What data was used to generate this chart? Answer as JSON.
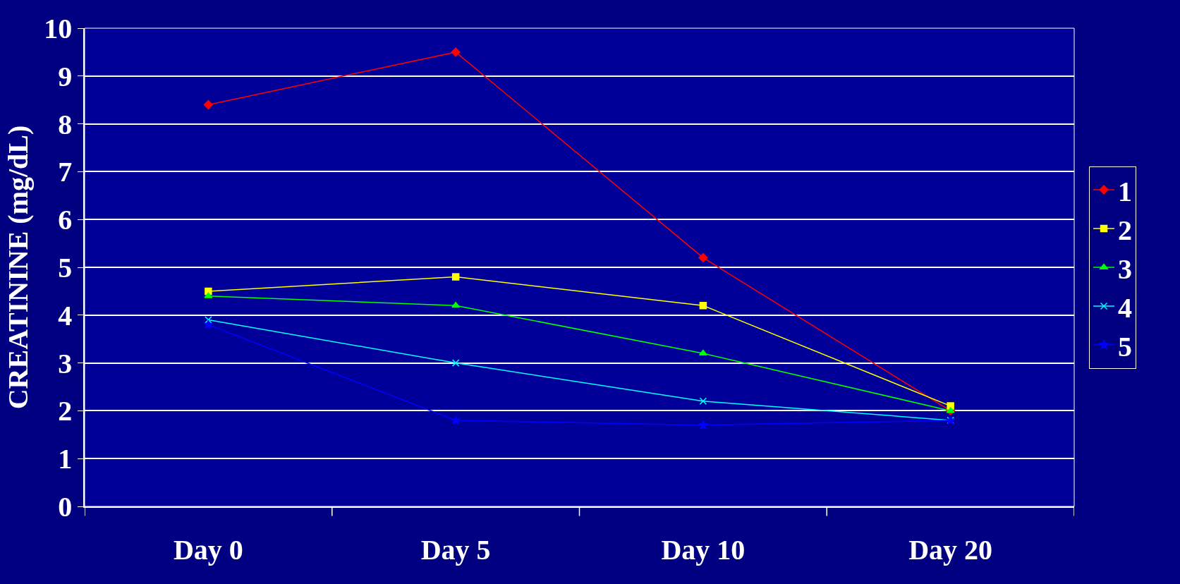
{
  "chart_data": {
    "type": "line",
    "ylabel": "CREATININE (mg/dL)",
    "categories": [
      "Day 0",
      "Day 5",
      "Day 10",
      "Day 20"
    ],
    "series": [
      {
        "name": "1",
        "color": "#ff0000",
        "marker": "diamond",
        "values": [
          8.4,
          9.5,
          5.2,
          2.0
        ]
      },
      {
        "name": "2",
        "color": "#ffff00",
        "marker": "square",
        "values": [
          4.5,
          4.8,
          4.2,
          2.1
        ]
      },
      {
        "name": "3",
        "color": "#00ff00",
        "marker": "triangle",
        "values": [
          4.4,
          4.2,
          3.2,
          2.0
        ]
      },
      {
        "name": "4",
        "color": "#00ffff",
        "marker": "cross",
        "values": [
          3.9,
          3.0,
          2.2,
          1.8
        ]
      },
      {
        "name": "5",
        "color": "#0000ff",
        "marker": "star",
        "values": [
          3.8,
          1.8,
          1.7,
          1.8
        ]
      }
    ],
    "ylim": [
      0,
      10
    ],
    "yticks": [
      0,
      1,
      2,
      3,
      4,
      5,
      6,
      7,
      8,
      9,
      10
    ],
    "grid": "y",
    "legend": "right",
    "line_style": "solid"
  }
}
